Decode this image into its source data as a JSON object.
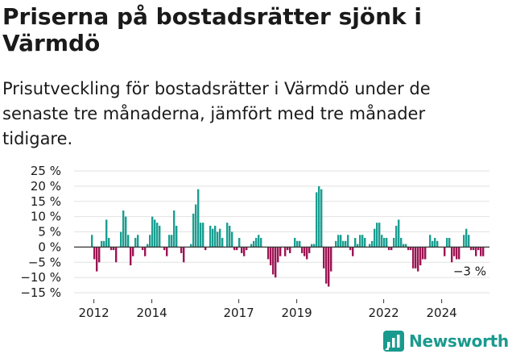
{
  "title": "Priserna på bostadsrätter sjönk i Värmdö",
  "subtitle": "Prisutveckling för bostadsrätter i Värmdö under de senaste tre månaderna, jämfört med tre månader tidigare.",
  "brand": "Newsworthy",
  "colors": {
    "positive": "#1a9e91",
    "negative": "#9c1553",
    "brand": "#1a9a8e",
    "grid": "#e2e2e2",
    "zero_line": "#333333"
  },
  "chart_data": {
    "type": "bar",
    "title": "Priserna på bostadsrätter sjönk i Värmdö",
    "subtitle": "Prisutveckling för bostadsrätter i Värmdö under de senaste tre månaderna, jämfört med tre månader tidigare.",
    "xlabel": "",
    "ylabel": "",
    "ylim": [
      -15,
      25
    ],
    "yticks": [
      25,
      20,
      15,
      10,
      5,
      0,
      -5,
      -10,
      -15
    ],
    "ytick_labels": [
      "25 %",
      "20 %",
      "15 %",
      "10 %",
      "5 %",
      "0 %",
      "−5 %",
      "−10 %",
      "−15 %"
    ],
    "xticks": [
      2012,
      2014,
      2017,
      2019,
      2022,
      2024
    ],
    "x_start": 2011.9,
    "bars_per_year": 12,
    "grid": true,
    "values": [
      4,
      -4,
      -8,
      -5,
      2,
      2,
      9,
      3,
      -1,
      -1,
      -5,
      0,
      5,
      12,
      10,
      4,
      -6,
      -3,
      3,
      4,
      0,
      -1,
      -3,
      1,
      4,
      10,
      9,
      8,
      7,
      0,
      -1,
      -3,
      4,
      4,
      12,
      7,
      0,
      -2,
      -5,
      0,
      0,
      1,
      11,
      14,
      19,
      8,
      8,
      -1,
      0,
      7,
      6,
      7,
      5,
      6,
      3,
      0,
      8,
      7,
      5,
      -1,
      -1,
      3,
      -2,
      -3,
      -1,
      0,
      1,
      2,
      3,
      4,
      3,
      0,
      0,
      -4,
      -6,
      -9,
      -10,
      -5,
      -3,
      0,
      -3,
      -1,
      -2,
      0,
      3,
      2,
      2,
      -2,
      -3,
      -4,
      -2,
      1,
      1,
      18,
      20,
      19,
      -7,
      -12,
      -13,
      -8,
      0,
      2,
      4,
      4,
      2,
      2,
      4,
      -1,
      -3,
      3,
      1,
      4,
      4,
      3,
      0,
      1,
      2,
      6,
      8,
      8,
      4,
      3,
      3,
      -1,
      -1,
      3,
      7,
      9,
      3,
      1,
      1,
      -1,
      -1,
      -7,
      -7,
      -8,
      -6,
      -4,
      -4,
      0,
      4,
      2,
      3,
      2,
      0,
      0,
      -3,
      3,
      3,
      -5,
      -3,
      -4,
      -4,
      0,
      4,
      6,
      4,
      -1,
      -1,
      -3,
      -1,
      -3,
      -3
    ]
  }
}
